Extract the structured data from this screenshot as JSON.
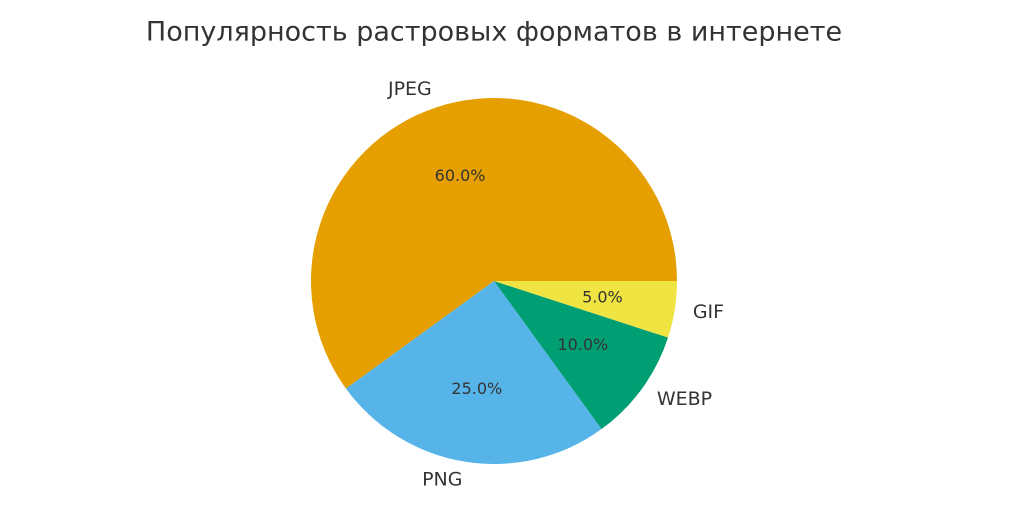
{
  "chart_data": {
    "type": "pie",
    "title": "Популярность растровых форматов в интернете",
    "categories": [
      "JPEG",
      "PNG",
      "WEBP",
      "GIF"
    ],
    "values": [
      60,
      25,
      10,
      5
    ],
    "value_labels": [
      "60.0%",
      "25.0%",
      "10.0%",
      "5.0%"
    ],
    "colors": [
      "#E69F00",
      "#56B4E9",
      "#009E73",
      "#F0E442"
    ]
  }
}
